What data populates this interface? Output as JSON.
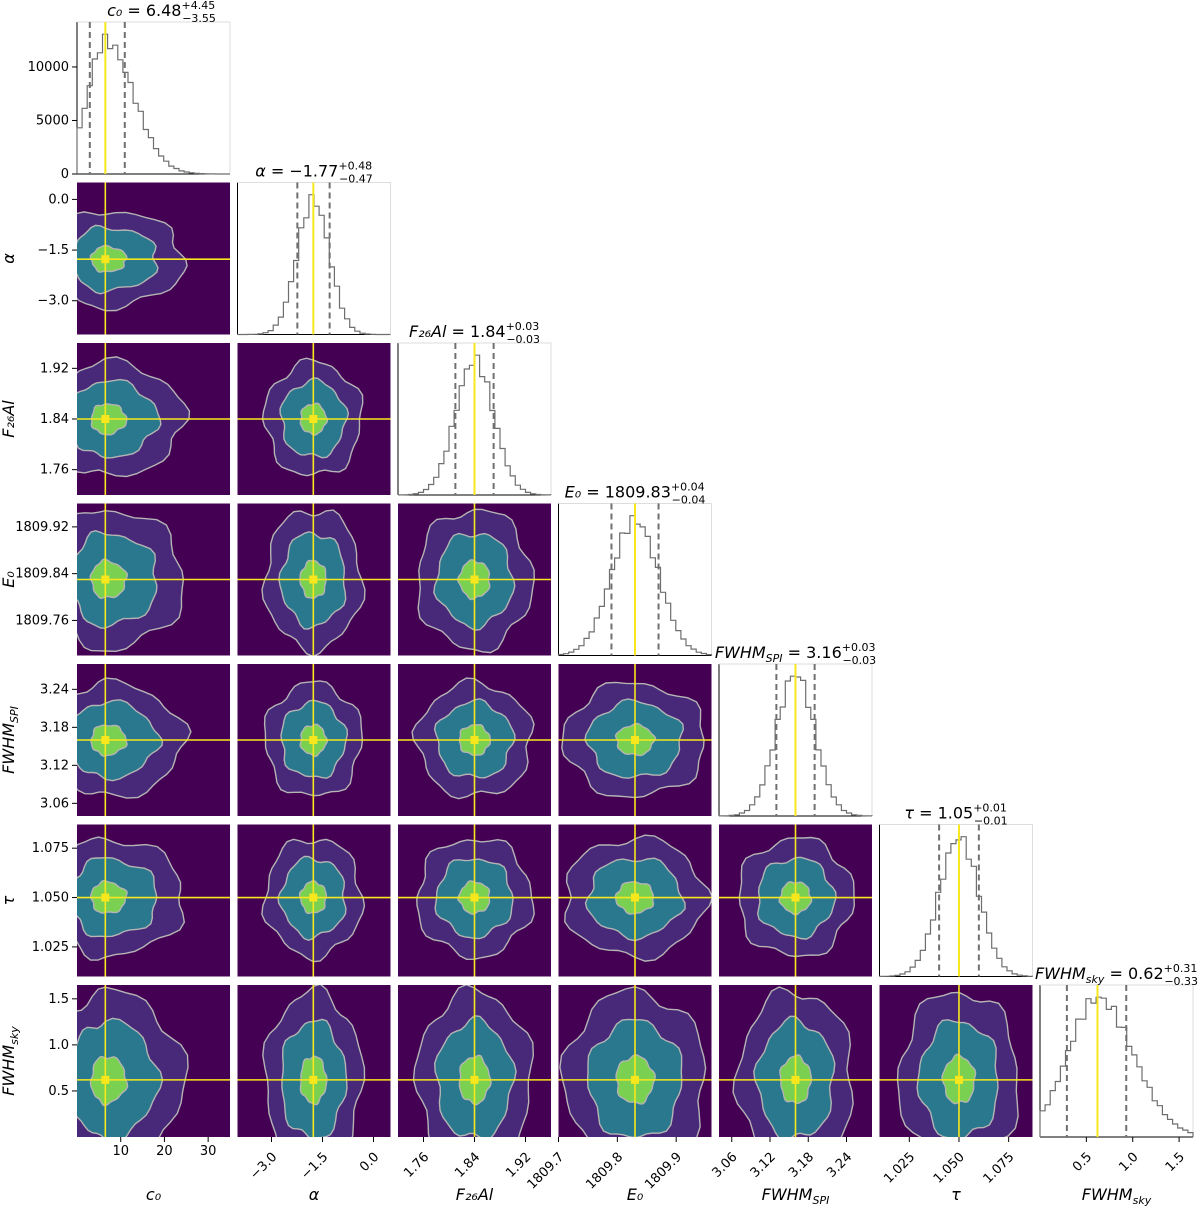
{
  "chart_data": {
    "type": "corner",
    "parameters": [
      {
        "key": "c0",
        "label": "c₀",
        "title": "c₀ = 6.48",
        "err_plus": "+4.45",
        "err_minus": "−3.55",
        "median": 6.48,
        "lo": 2.93,
        "hi": 10.93,
        "range": [
          0,
          35
        ],
        "ticks": [
          10,
          20,
          30
        ],
        "tick_labels": [
          "10",
          "20",
          "30"
        ],
        "hist_ticks": [
          0,
          5000,
          10000
        ],
        "hist_tick_labels": [
          "0",
          "5000",
          "10000"
        ],
        "hist_max": 14200
      },
      {
        "key": "alpha",
        "label": "α",
        "title": "α = −1.77",
        "err_plus": "+0.48",
        "err_minus": "−0.47",
        "median": -1.77,
        "lo": -2.24,
        "hi": -1.29,
        "range": [
          -4.0,
          0.5
        ],
        "ticks": [
          -3.0,
          -1.5,
          0.0
        ],
        "tick_labels": [
          "−3.0",
          "−1.5",
          "0.0"
        ]
      },
      {
        "key": "F26Al",
        "label": "F₂₆Al",
        "title": "F₂₆Al = 1.84",
        "err_plus": "+0.03",
        "err_minus": "−0.03",
        "median": 1.84,
        "lo": 1.81,
        "hi": 1.87,
        "range": [
          1.72,
          1.96
        ],
        "ticks": [
          1.76,
          1.84,
          1.92
        ],
        "tick_labels": [
          "1.76",
          "1.84",
          "1.92"
        ]
      },
      {
        "key": "E0",
        "label": "E₀",
        "title": "E₀ = 1809.83",
        "err_plus": "+0.04",
        "err_minus": "−0.04",
        "median": 1809.83,
        "lo": 1809.79,
        "hi": 1809.87,
        "range": [
          1809.7,
          1809.96
        ],
        "ticks": [
          1809.7,
          1809.8,
          1809.9
        ],
        "tick_labels": [
          "1809.7",
          "1809.8",
          "1809.9"
        ],
        "y_ticks": [
          1809.76,
          1809.84,
          1809.92
        ],
        "y_tick_labels": [
          "1809.76",
          "1809.84",
          "1809.92"
        ]
      },
      {
        "key": "FWHMspi",
        "label": "FWHM_SPI",
        "title": "FWHM_SPI = 3.16",
        "err_plus": "+0.03",
        "err_minus": "−0.03",
        "median": 3.16,
        "lo": 3.13,
        "hi": 3.19,
        "range": [
          3.04,
          3.28
        ],
        "ticks": [
          3.06,
          3.12,
          3.18,
          3.24
        ],
        "tick_labels": [
          "3.06",
          "3.12",
          "3.18",
          "3.24"
        ]
      },
      {
        "key": "tau",
        "label": "τ",
        "title": "τ = 1.05",
        "err_plus": "+0.01",
        "err_minus": "−0.01",
        "median": 1.05,
        "lo": 1.04,
        "hi": 1.06,
        "range": [
          1.01,
          1.087
        ],
        "ticks": [
          1.025,
          1.05,
          1.075
        ],
        "tick_labels": [
          "1.025",
          "1.050",
          "1.075"
        ]
      },
      {
        "key": "FWHMsky",
        "label": "FWHM_sky",
        "title": "FWHM_sky = 0.62",
        "err_plus": "+0.31",
        "err_minus": "−0.33",
        "median": 0.62,
        "lo": 0.29,
        "hi": 0.93,
        "range": [
          0.0,
          1.65
        ],
        "ticks": [
          0.5,
          1.0,
          1.5
        ],
        "tick_labels": [
          "0.5",
          "1.0",
          "1.5"
        ]
      }
    ],
    "colors": {
      "background": "#440154",
      "level1": "#482878",
      "level2": "#2a788e",
      "level3": "#7ad151",
      "contour_line": "#b4b4b4",
      "truth_line": "#f8e71c",
      "histogram": "#6e6e6e",
      "quantile_line": "#707070"
    }
  }
}
